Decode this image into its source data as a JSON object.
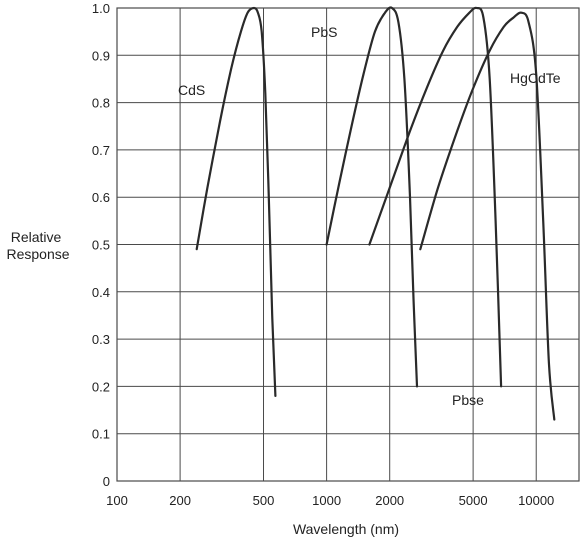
{
  "chart_data": {
    "type": "line",
    "title": "",
    "xlabel": "Wavelength (nm)",
    "ylabel": "Relative Response",
    "xscale": "log",
    "xlim": [
      100,
      16000
    ],
    "ylim": [
      0,
      1.0
    ],
    "grid": true,
    "x_ticks": [
      {
        "value": 100,
        "label": "100"
      },
      {
        "value": 200,
        "label": "200"
      },
      {
        "value": 500,
        "label": "500"
      },
      {
        "value": 1000,
        "label": "1000"
      },
      {
        "value": 2000,
        "label": "2000"
      },
      {
        "value": 5000,
        "label": "5000"
      },
      {
        "value": 10000,
        "label": "10000"
      }
    ],
    "y_ticks": [
      {
        "value": 0,
        "label": "0"
      },
      {
        "value": 0.1,
        "label": "0.1"
      },
      {
        "value": 0.2,
        "label": "0.2"
      },
      {
        "value": 0.3,
        "label": "0.3"
      },
      {
        "value": 0.4,
        "label": "0.4"
      },
      {
        "value": 0.5,
        "label": "0.5"
      },
      {
        "value": 0.6,
        "label": "0.6"
      },
      {
        "value": 0.7,
        "label": "0.7"
      },
      {
        "value": 0.8,
        "label": "0.8"
      },
      {
        "value": 0.9,
        "label": "0.9"
      },
      {
        "value": 1.0,
        "label": "1.0"
      }
    ],
    "series": [
      {
        "name": "CdS",
        "x": [
          240,
          270,
          310,
          350,
          390,
          420,
          450,
          470,
          490,
          510,
          530,
          550,
          570
        ],
        "y": [
          0.49,
          0.62,
          0.76,
          0.87,
          0.95,
          0.99,
          1.0,
          0.99,
          0.95,
          0.82,
          0.6,
          0.35,
          0.18
        ]
      },
      {
        "name": "PbS",
        "x": [
          1000,
          1150,
          1300,
          1500,
          1700,
          1900,
          2050,
          2200,
          2350,
          2500,
          2600,
          2700
        ],
        "y": [
          0.5,
          0.63,
          0.74,
          0.86,
          0.95,
          0.99,
          1.0,
          0.97,
          0.85,
          0.6,
          0.38,
          0.2
        ]
      },
      {
        "name": "Pbse",
        "x": [
          1600,
          2000,
          2500,
          3000,
          3600,
          4200,
          4800,
          5200,
          5600,
          6000,
          6400,
          6800
        ],
        "y": [
          0.5,
          0.62,
          0.74,
          0.83,
          0.91,
          0.96,
          0.99,
          1.0,
          0.98,
          0.85,
          0.55,
          0.2
        ]
      },
      {
        "name": "HgCdTe",
        "x": [
          2800,
          3400,
          4200,
          5000,
          6000,
          7000,
          7800,
          8500,
          9200,
          10000,
          10800,
          11500,
          12200
        ],
        "y": [
          0.49,
          0.62,
          0.74,
          0.83,
          0.91,
          0.96,
          0.98,
          0.99,
          0.97,
          0.86,
          0.55,
          0.25,
          0.13
        ]
      }
    ],
    "annotations": [
      {
        "text": "CdS",
        "series": "CdS"
      },
      {
        "text": "PbS",
        "series": "PbS"
      },
      {
        "text": "HgCdTe",
        "series": "HgCdTe"
      },
      {
        "text": "Pbse",
        "series": "Pbse"
      }
    ]
  }
}
